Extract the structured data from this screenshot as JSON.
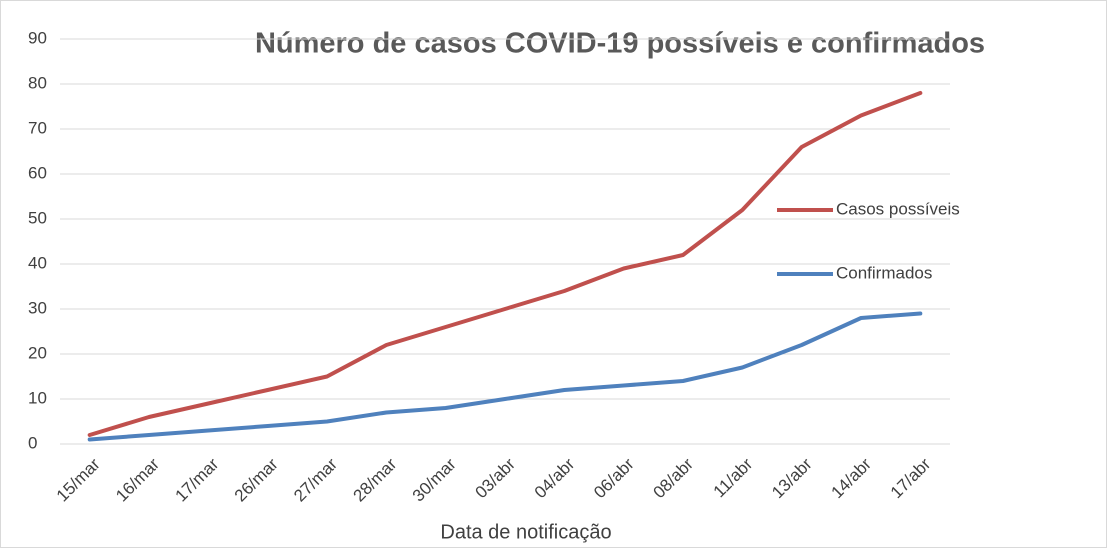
{
  "chart_data": {
    "type": "line",
    "title": "Número de casos COVID-19 possíveis e confirmados",
    "x_label": "Data de notificação",
    "categories": [
      "15/mar",
      "16/mar",
      "17/mar",
      "26/mar",
      "27/mar",
      "28/mar",
      "30/mar",
      "03/abr",
      "04/abr",
      "06/abr",
      "08/abr",
      "11/abr",
      "13/abr",
      "14/abr",
      "17/abr"
    ],
    "series": [
      {
        "name": "Casos possíveis",
        "color": "#c0504d",
        "values": [
          2,
          6,
          9,
          12,
          15,
          22,
          26,
          30,
          34,
          39,
          42,
          52,
          66,
          73,
          78
        ]
      },
      {
        "name": "Confirmados",
        "color": "#4f81bd",
        "values": [
          1,
          2,
          3,
          4,
          5,
          7,
          8,
          10,
          12,
          13,
          14,
          17,
          22,
          28,
          29
        ]
      }
    ],
    "ylim": [
      0,
      90
    ],
    "yticks": [
      0,
      10,
      20,
      30,
      40,
      50,
      60,
      70,
      80,
      90
    ],
    "grid": true,
    "legend": "right"
  }
}
